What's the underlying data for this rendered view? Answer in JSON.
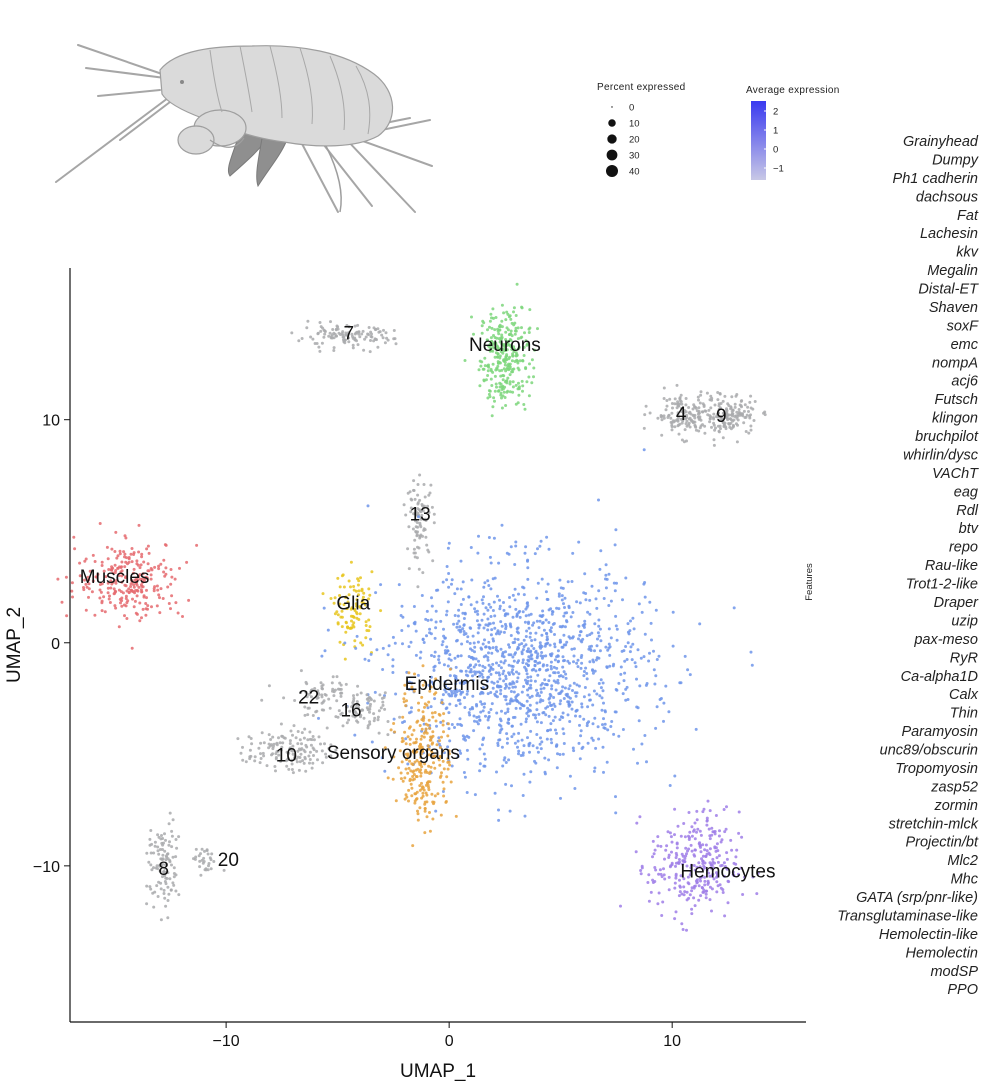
{
  "chart_data": {
    "type": "scatter",
    "subtype": "UMAP embedding with dot-plot legend",
    "xlabel": "UMAP_1",
    "ylabel": "UMAP_2",
    "xlim": [
      -17,
      16
    ],
    "ylim": [
      -17,
      16.8
    ],
    "x_ticks": [
      -10,
      0,
      10
    ],
    "y_ticks": [
      -10,
      0,
      10
    ],
    "grid": false,
    "clusters": [
      {
        "label": "Neurons",
        "color": "#7dd67b",
        "cx": 2.5,
        "cy": 12.8,
        "sx": 0.55,
        "sy": 1.1,
        "n": 300,
        "lx": 2.5,
        "ly": 13.4
      },
      {
        "label": "4",
        "color": "#a9aaad",
        "cx": 10.5,
        "cy": 10.2,
        "sx": 0.7,
        "sy": 0.45,
        "n": 150,
        "lx": 10.4,
        "ly": 10.3
      },
      {
        "label": "9",
        "color": "#a9aaad",
        "cx": 12.6,
        "cy": 10.2,
        "sx": 0.6,
        "sy": 0.45,
        "n": 150,
        "lx": 12.2,
        "ly": 10.2
      },
      {
        "label": "7",
        "color": "#a9aaad",
        "cx": -4.7,
        "cy": 13.7,
        "sx": 1.1,
        "sy": 0.25,
        "n": 120,
        "lx": -4.5,
        "ly": 13.9
      },
      {
        "label": "13",
        "color": "#a9aaad",
        "cx": -1.3,
        "cy": 5.5,
        "sx": 0.3,
        "sy": 0.9,
        "n": 90,
        "lx": -1.3,
        "ly": 5.8
      },
      {
        "label": "Muscles",
        "color": "#e56a6f",
        "cx": -14.3,
        "cy": 2.8,
        "sx": 1.2,
        "sy": 0.9,
        "n": 260,
        "lx": -15.0,
        "ly": 3.0
      },
      {
        "label": "Glia",
        "color": "#e8c61f",
        "cx": -4.3,
        "cy": 1.5,
        "sx": 0.45,
        "sy": 0.8,
        "n": 100,
        "lx": -4.3,
        "ly": 1.8
      },
      {
        "label": "Epidermis",
        "color": "#6e95ea",
        "cx": 3.2,
        "cy": -1.2,
        "sx": 2.9,
        "sy": 2.3,
        "n": 1300,
        "lx": -0.1,
        "ly": -1.8
      },
      {
        "label": "22",
        "color": "#a9aaad",
        "cx": -5.6,
        "cy": -2.4,
        "sx": 1.0,
        "sy": 0.45,
        "n": 70,
        "lx": -6.3,
        "ly": -2.4
      },
      {
        "label": "16",
        "color": "#a9aaad",
        "cx": -4.0,
        "cy": -3.1,
        "sx": 0.8,
        "sy": 0.45,
        "n": 70,
        "lx": -4.4,
        "ly": -3.0
      },
      {
        "label": "10",
        "color": "#a9aaad",
        "cx": -7.3,
        "cy": -4.8,
        "sx": 0.9,
        "sy": 0.45,
        "n": 140,
        "lx": -7.3,
        "ly": -5.0
      },
      {
        "label": "Sensory organs",
        "color": "#e8a33e",
        "cx": -1.1,
        "cy": -5.0,
        "sx": 0.6,
        "sy": 1.6,
        "n": 260,
        "lx": -2.5,
        "ly": -4.9
      },
      {
        "label": "8",
        "color": "#a9aaad",
        "cx": -12.8,
        "cy": -10.0,
        "sx": 0.35,
        "sy": 1.0,
        "n": 110,
        "lx": -12.8,
        "ly": -10.1
      },
      {
        "label": "20",
        "color": "#a9aaad",
        "cx": -11.0,
        "cy": -9.8,
        "sx": 0.3,
        "sy": 0.3,
        "n": 30,
        "lx": -9.9,
        "ly": -9.7
      },
      {
        "label": "Hemocytes",
        "color": "#9f7ee8",
        "cx": 11.0,
        "cy": -10.0,
        "sx": 1.0,
        "sy": 1.2,
        "n": 300,
        "lx": 12.5,
        "ly": -10.2
      }
    ],
    "legend_percent": {
      "title": "Percent expressed",
      "values": [
        0,
        10,
        20,
        30,
        40
      ],
      "labels": [
        "0",
        "10",
        "20",
        "30",
        "40"
      ]
    },
    "legend_avg": {
      "title": "Average expression",
      "labels": [
        "2",
        "1",
        "0",
        "−1"
      ],
      "colors": [
        "#3a3af0",
        "#c8c8e6"
      ]
    },
    "features_axis_label": "Features",
    "features": [
      "Grainyhead",
      "Dumpy",
      "Ph1 cadherin",
      "dachsous",
      "Fat",
      "Lachesin",
      "kkv",
      "Megalin",
      "Distal-ET",
      "Shaven",
      "soxF",
      "emc",
      "nompA",
      "acj6",
      "Futsch",
      "klingon",
      "bruchpilot",
      "whirlin/dysc",
      "VAChT",
      "eag",
      "Rdl",
      "btv",
      "repo",
      "Rau-like",
      "Trot1-2-like",
      "Draper",
      "uzip",
      "pax-meso",
      "RyR",
      "Ca-alpha1D",
      "Calx",
      "Thin",
      "Paramyosin",
      "unc89/obscurin",
      "Tropomyosin",
      "zasp52",
      "zormin",
      "stretchin-mlck",
      "Projectin/bt",
      "Mlc2",
      "Mhc",
      "GATA (srp/pnr-like)",
      "Transglutaminase-like",
      "Hemolectin-like",
      "Hemolectin",
      "modSP",
      "PPO"
    ]
  },
  "illustration": {
    "icon": "amphipod-crustacean-icon",
    "colors": {
      "body": "#d8d8d8",
      "legs_dark": "#8e8e8e",
      "outline": "#9a9a9a"
    }
  }
}
